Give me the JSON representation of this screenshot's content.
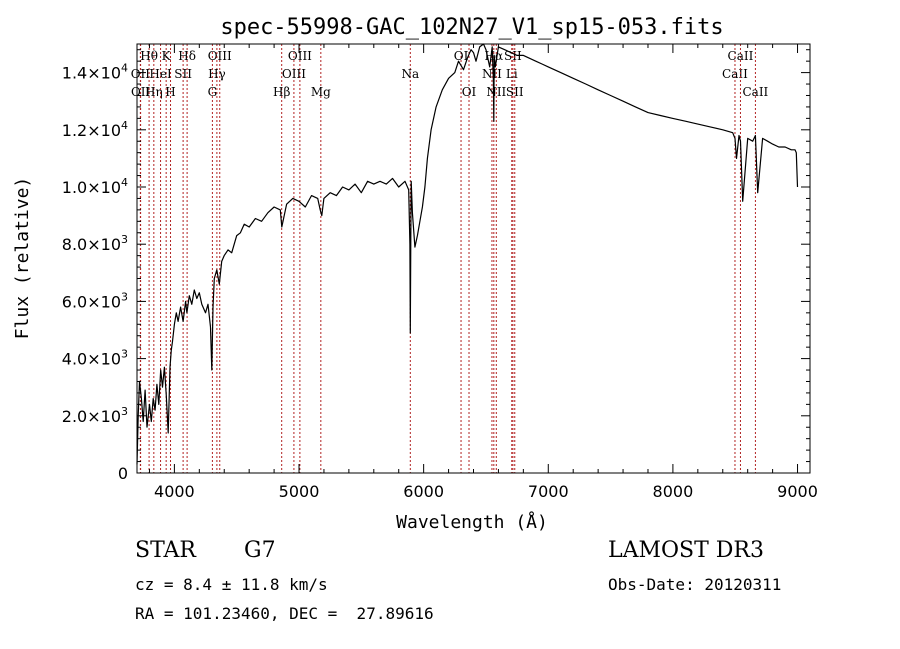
{
  "chart_data": {
    "type": "line",
    "title": "spec-55998-GAC_102N27_V1_sp15-053.fits",
    "xlabel": "Wavelength (Å)",
    "ylabel": "Flux (relative)",
    "xlim": [
      3700,
      9100
    ],
    "ylim": [
      0,
      15000
    ],
    "xticks": [
      4000,
      5000,
      6000,
      7000,
      8000,
      9000
    ],
    "xtick_labels": [
      "4000",
      "5000",
      "6000",
      "7000",
      "8000",
      "9000"
    ],
    "yticks": [
      0,
      2000,
      4000,
      6000,
      8000,
      10000,
      12000,
      14000
    ],
    "ytick_labels": [
      {
        "mant": "0",
        "exp": ""
      },
      {
        "mant": "2.0×10",
        "exp": "3"
      },
      {
        "mant": "4.0×10",
        "exp": "3"
      },
      {
        "mant": "6.0×10",
        "exp": "3"
      },
      {
        "mant": "8.0×10",
        "exp": "3"
      },
      {
        "mant": "1.0×10",
        "exp": "4"
      },
      {
        "mant": "1.2×10",
        "exp": "4"
      },
      {
        "mant": "1.4×10",
        "exp": "4"
      }
    ],
    "grid": false,
    "line_color": "#000000",
    "marker_color": "#b22222",
    "series": [
      {
        "x": [
          3700,
          3710,
          3720,
          3735,
          3750,
          3765,
          3780,
          3800,
          3815,
          3830,
          3845,
          3860,
          3875,
          3890,
          3905,
          3920,
          3935,
          3950,
          3965,
          3975,
          3985,
          4000,
          4015,
          4030,
          4050,
          4070,
          4090,
          4100,
          4120,
          4140,
          4160,
          4180,
          4200,
          4220,
          4250,
          4270,
          4290,
          4300,
          4310,
          4320,
          4340,
          4360,
          4380,
          4400,
          4430,
          4460,
          4500,
          4530,
          4560,
          4600,
          4650,
          4700,
          4750,
          4800,
          4850,
          4862,
          4900,
          4950,
          5000,
          5050,
          5100,
          5150,
          5170,
          5183,
          5200,
          5250,
          5300,
          5350,
          5400,
          5450,
          5500,
          5550,
          5600,
          5650,
          5700,
          5750,
          5800,
          5850,
          5880,
          5890,
          5893,
          5897,
          5900,
          5910,
          5930,
          5950,
          5970,
          5990,
          6010,
          6030,
          6060,
          6100,
          6150,
          6200,
          6250,
          6280,
          6320,
          6350,
          6380,
          6400,
          6420,
          6450,
          6480,
          6500,
          6530,
          6550,
          6560,
          6563,
          6566,
          6575,
          6600,
          6650,
          6700,
          6750,
          6800,
          6850,
          6900,
          6950,
          7000,
          7100,
          7200,
          7300,
          7400,
          7500,
          7600,
          7700,
          7800,
          7900,
          8000,
          8100,
          8200,
          8300,
          8400,
          8480,
          8498,
          8510,
          8530,
          8542,
          8560,
          8600,
          8640,
          8662,
          8680,
          8720,
          8760,
          8800,
          8850,
          8900,
          8950,
          8980,
          8990,
          9000
        ],
        "y": [
          300,
          2000,
          3200,
          2600,
          1800,
          2900,
          1600,
          2400,
          1800,
          2600,
          2200,
          3100,
          2400,
          3600,
          3000,
          3700,
          2700,
          1400,
          3700,
          4300,
          4600,
          5200,
          5600,
          5300,
          5800,
          5300,
          6000,
          5600,
          6200,
          5900,
          6400,
          6100,
          6300,
          5900,
          5600,
          5900,
          5100,
          3600,
          5800,
          6800,
          7100,
          6600,
          7400,
          7600,
          7800,
          7700,
          8300,
          8400,
          8700,
          8600,
          8900,
          8800,
          9100,
          9300,
          9200,
          8600,
          9400,
          9600,
          9500,
          9300,
          9700,
          9600,
          9200,
          9000,
          9600,
          9800,
          9700,
          10000,
          9900,
          10100,
          9800,
          10200,
          10100,
          10200,
          10100,
          10300,
          10000,
          10200,
          9900,
          8000,
          4900,
          8200,
          10200,
          9100,
          7900,
          8300,
          8800,
          9300,
          10000,
          11000,
          12000,
          12800,
          13400,
          13800,
          14000,
          14400,
          14100,
          14500,
          14800,
          14700,
          14400,
          14900,
          15000,
          14800,
          14200,
          14900,
          13700,
          12300,
          14600,
          14200,
          14900,
          14800,
          14700,
          14600,
          14600,
          14500,
          14400,
          14300,
          14200,
          14000,
          13800,
          13600,
          13400,
          13200,
          13000,
          12800,
          12600,
          12500,
          12400,
          12300,
          12200,
          12100,
          12000,
          11900,
          11700,
          11000,
          11800,
          11600,
          9500,
          11700,
          11600,
          11800,
          9800,
          11700,
          11600,
          11500,
          11400,
          11400,
          11300,
          11300,
          11200,
          10000
        ]
      }
    ],
    "line_markers": [
      {
        "name": "Hθ",
        "wave": 3797,
        "row": 0
      },
      {
        "name": "OII",
        "wave": 3727,
        "row": 1
      },
      {
        "name": "OII",
        "wave": 3729,
        "row": 2
      },
      {
        "name": "Hη",
        "wave": 3835,
        "row": 2
      },
      {
        "name": "K",
        "wave": 3934,
        "row": 0
      },
      {
        "name": "HeI",
        "wave": 3889,
        "row": 1
      },
      {
        "name": "SII",
        "wave": 4070,
        "row": 1
      },
      {
        "name": "H",
        "wave": 3969,
        "row": 2
      },
      {
        "name": "Hδ",
        "wave": 4102,
        "row": 0
      },
      {
        "name": "OIII",
        "wave": 4364,
        "row": 0
      },
      {
        "name": "Hγ",
        "wave": 4341,
        "row": 1
      },
      {
        "name": "G",
        "wave": 4305,
        "row": 2
      },
      {
        "name": "Hβ",
        "wave": 4861,
        "row": 2
      },
      {
        "name": "OIII",
        "wave": 4959,
        "row": 1
      },
      {
        "name": "OIII",
        "wave": 5007,
        "row": 0
      },
      {
        "name": "Mg",
        "wave": 5175,
        "row": 2
      },
      {
        "name": "Na",
        "wave": 5893,
        "row": 1
      },
      {
        "name": "OI",
        "wave": 6300,
        "row": 0
      },
      {
        "name": "OI",
        "wave": 6364,
        "row": 2
      },
      {
        "name": "NII",
        "wave": 6548,
        "row": 1
      },
      {
        "name": "NII",
        "wave": 6583,
        "row": 2
      },
      {
        "name": "Hα",
        "wave": 6563,
        "row": 0
      },
      {
        "name": "SII",
        "wave": 6716,
        "row": 0
      },
      {
        "name": "Li",
        "wave": 6707,
        "row": 1
      },
      {
        "name": "SII",
        "wave": 6731,
        "row": 2
      },
      {
        "name": "CaII",
        "wave": 8498,
        "row": 1
      },
      {
        "name": "CaII",
        "wave": 8542,
        "row": 0
      },
      {
        "name": "CaII",
        "wave": 8662,
        "row": 2
      }
    ]
  },
  "info": {
    "object_class": "STAR",
    "subclass": "G7",
    "survey": "LAMOST DR3",
    "redshift": "cz = 8.4 ± 11.8 km/s",
    "obs_date": "Obs-Date: 20120311",
    "coords": "RA = 101.23460, DEC =  27.89616"
  }
}
